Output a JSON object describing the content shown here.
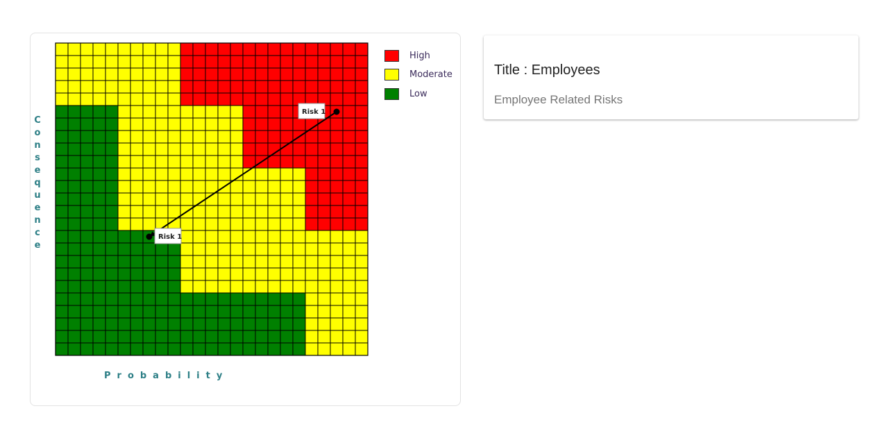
{
  "matrix": {
    "ylabel": "Consequence",
    "xlabel": "Probability",
    "legend": [
      {
        "label": "High",
        "color": "#ff0000"
      },
      {
        "label": "Moderate",
        "color": "#ffff00"
      },
      {
        "label": "Low",
        "color": "#008000"
      }
    ],
    "grid": {
      "cols": 25,
      "rows": 25
    }
  },
  "chart_data": {
    "type": "heatmap",
    "xlabel": "Probability",
    "ylabel": "Consequence",
    "legend": [
      "High",
      "Moderate",
      "Low"
    ],
    "colors": {
      "High": "#ff0000",
      "Moderate": "#ffff00",
      "Low": "#008000"
    },
    "xlim": [
      0,
      25
    ],
    "ylim": [
      0,
      25
    ],
    "zones": [
      {
        "level": "Low",
        "cells": "x 0-4, y 0-20; x 5-9, y 0-10; x 10-19, y 0-5"
      },
      {
        "level": "Moderate",
        "cells": "x 0-4, y 20-25; x 5-9, y 10-25; x 10-14, y 5-20; x 15-19, y 5-15; x 20-24, y 0-10"
      },
      {
        "level": "High",
        "cells": "x 10-14, y 20-25; x 15-19, y 15-25; x 20-24, y 10-25"
      }
    ],
    "arrow_color": "#000000",
    "risks": [
      {
        "label": "Risk 1",
        "start": [
          7.5,
          9.5
        ],
        "end": [
          22.5,
          19.5
        ]
      }
    ]
  },
  "info": {
    "title": "Title : Employees",
    "subtitle": "Employee Related Risks"
  }
}
